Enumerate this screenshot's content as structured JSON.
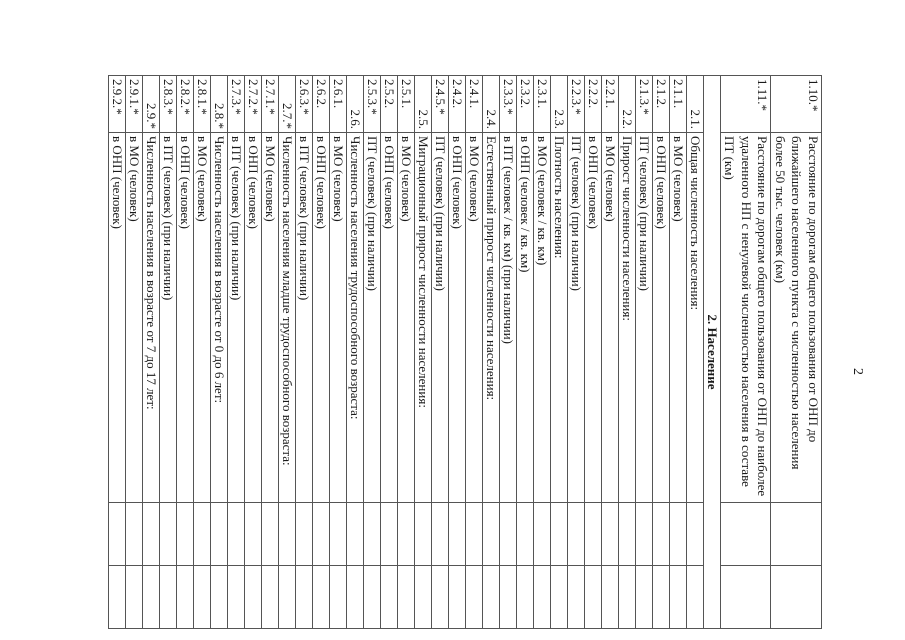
{
  "page_number": "2",
  "section_title": "2. Население",
  "rows_before": [
    {
      "num": "1.10.*",
      "text": "Расстояние по дорогам общего пользования от ОНП до ближайшего населенного пункта с численностью населения более 50 тыс. человек (км)"
    },
    {
      "num": "1.11.*",
      "text": "Расстояние по дорогам общего пользования от ОНП до наиболее удаленного НП с ненулевой численностью населения в составе ПТ (км)"
    }
  ],
  "rows": [
    {
      "num": "2.1.",
      "text": "Общая численность населения:",
      "r": true
    },
    {
      "num": "2.1.1.",
      "text": "в МО (человек)"
    },
    {
      "num": "2.1.2.",
      "text": "в ОНП (человек)"
    },
    {
      "num": "2.1.3.*",
      "text": "ПТ (человек) (при наличии)"
    },
    {
      "num": "2.2.",
      "text": "Прирост численности населения:",
      "r": true
    },
    {
      "num": "2.2.1.",
      "text": "в МО (человек)"
    },
    {
      "num": "2.2.2.",
      "text": "в ОНП (человек)"
    },
    {
      "num": "2.2.3.*",
      "text": "ПТ (человек) (при наличии)"
    },
    {
      "num": "2.3.",
      "text": "Плотность населения:",
      "r": true
    },
    {
      "num": "2.3.1.",
      "text": "в МО (человек / кв. км)"
    },
    {
      "num": "2.3.2.",
      "text": "в ОНП (человек / кв. км)"
    },
    {
      "num": "2.3.3.*",
      "text": "в ПТ (человек / кв. км) (при наличии)"
    },
    {
      "num": "2.4.",
      "text": "Естественный прирост численности населения:",
      "r": true
    },
    {
      "num": "2.4.1.",
      "text": "в МО (человек)"
    },
    {
      "num": "2.4.2.",
      "text": "в ОНП (человек)"
    },
    {
      "num": "2.4.5.*",
      "text": "ПТ (человек) (при наличии)"
    },
    {
      "num": "2.5.",
      "text": "Миграционный прирост численности населения:",
      "r": true
    },
    {
      "num": "2.5.1.",
      "text": "в МО (человек)"
    },
    {
      "num": "2.5.2.",
      "text": "в ОНП (человек)"
    },
    {
      "num": "2.5.3.*",
      "text": "ПТ (человек) (при наличии)"
    },
    {
      "num": "2.6.",
      "text": "Численность населения трудоспособного возраста:",
      "r": true
    },
    {
      "num": "2.6.1.",
      "text": "в МО (человек)"
    },
    {
      "num": "2.6.2.",
      "text": "в ОНП (человек)"
    },
    {
      "num": "2.6.3.*",
      "text": "в ПТ (человек) (при наличии)"
    },
    {
      "num": "2.7.*",
      "text": "Численность населения младше трудоспособного возраста:",
      "r": true
    },
    {
      "num": "2.7.1.*",
      "text": "в МО (человек)"
    },
    {
      "num": "2.7.2.*",
      "text": "в ОНП (человек)"
    },
    {
      "num": "2.7.3.*",
      "text": "в ПТ (человек) (при наличии)"
    },
    {
      "num": "2.8.*",
      "text": "Численность населения в возрасте от 0 до 6 лет:",
      "r": true
    },
    {
      "num": "2.8.1.*",
      "text": "в МО (человек)"
    },
    {
      "num": "2.8.2.*",
      "text": "в ОНП (человек)"
    },
    {
      "num": "2.8.3.*",
      "text": "в ПТ (человек) (при наличии)"
    },
    {
      "num": "2.9.*",
      "text": "Численность населения в возрасте от 7 до 17 лет:",
      "r": true
    },
    {
      "num": "2.9.1.*",
      "text": "в МО (человек)"
    },
    {
      "num": "2.9.2.*",
      "text": "в ОНП (человек)"
    }
  ]
}
